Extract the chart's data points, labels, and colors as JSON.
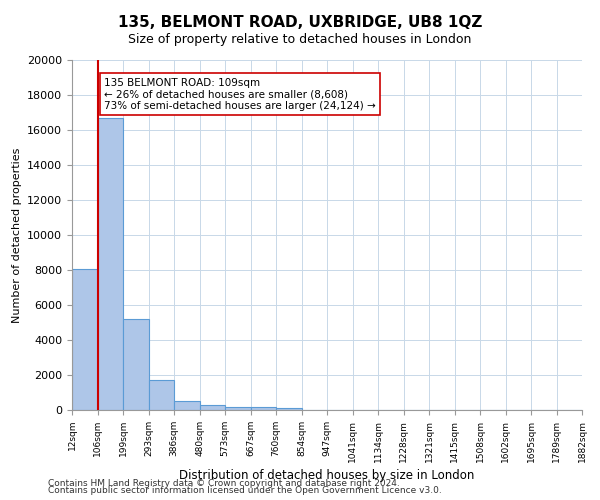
{
  "title_line1": "135, BELMONT ROAD, UXBRIDGE, UB8 1QZ",
  "title_line2": "Size of property relative to detached houses in London",
  "xlabel": "Distribution of detached houses by size in London",
  "ylabel": "Number of detached properties",
  "footer_line1": "Contains HM Land Registry data © Crown copyright and database right 2024.",
  "footer_line2": "Contains public sector information licensed under the Open Government Licence v3.0.",
  "annotation_line1": "135 BELMONT ROAD: 109sqm",
  "annotation_line2": "← 26% of detached houses are smaller (8,608)",
  "annotation_line3": "73% of semi-detached houses are larger (24,124) →",
  "property_size": 109,
  "bar_edges": [
    12,
    106,
    199,
    293,
    386,
    480,
    573,
    667,
    760,
    854,
    947,
    1041,
    1134,
    1228,
    1321,
    1415,
    1508,
    1602,
    1695,
    1789,
    1882
  ],
  "bar_heights": [
    8050,
    16700,
    5200,
    1700,
    500,
    300,
    200,
    150,
    100,
    0,
    0,
    0,
    0,
    0,
    0,
    0,
    0,
    0,
    0,
    0
  ],
  "bar_color": "#aec6e8",
  "bar_edge_color": "#5b9bd5",
  "red_line_color": "#cc0000",
  "grid_color": "#c8d8e8",
  "background_color": "#ffffff",
  "annotation_box_color": "#ffffff",
  "annotation_box_edge": "#cc0000",
  "ylim": [
    0,
    20000
  ],
  "yticks": [
    0,
    2000,
    4000,
    6000,
    8000,
    10000,
    12000,
    14000,
    16000,
    18000,
    20000
  ]
}
